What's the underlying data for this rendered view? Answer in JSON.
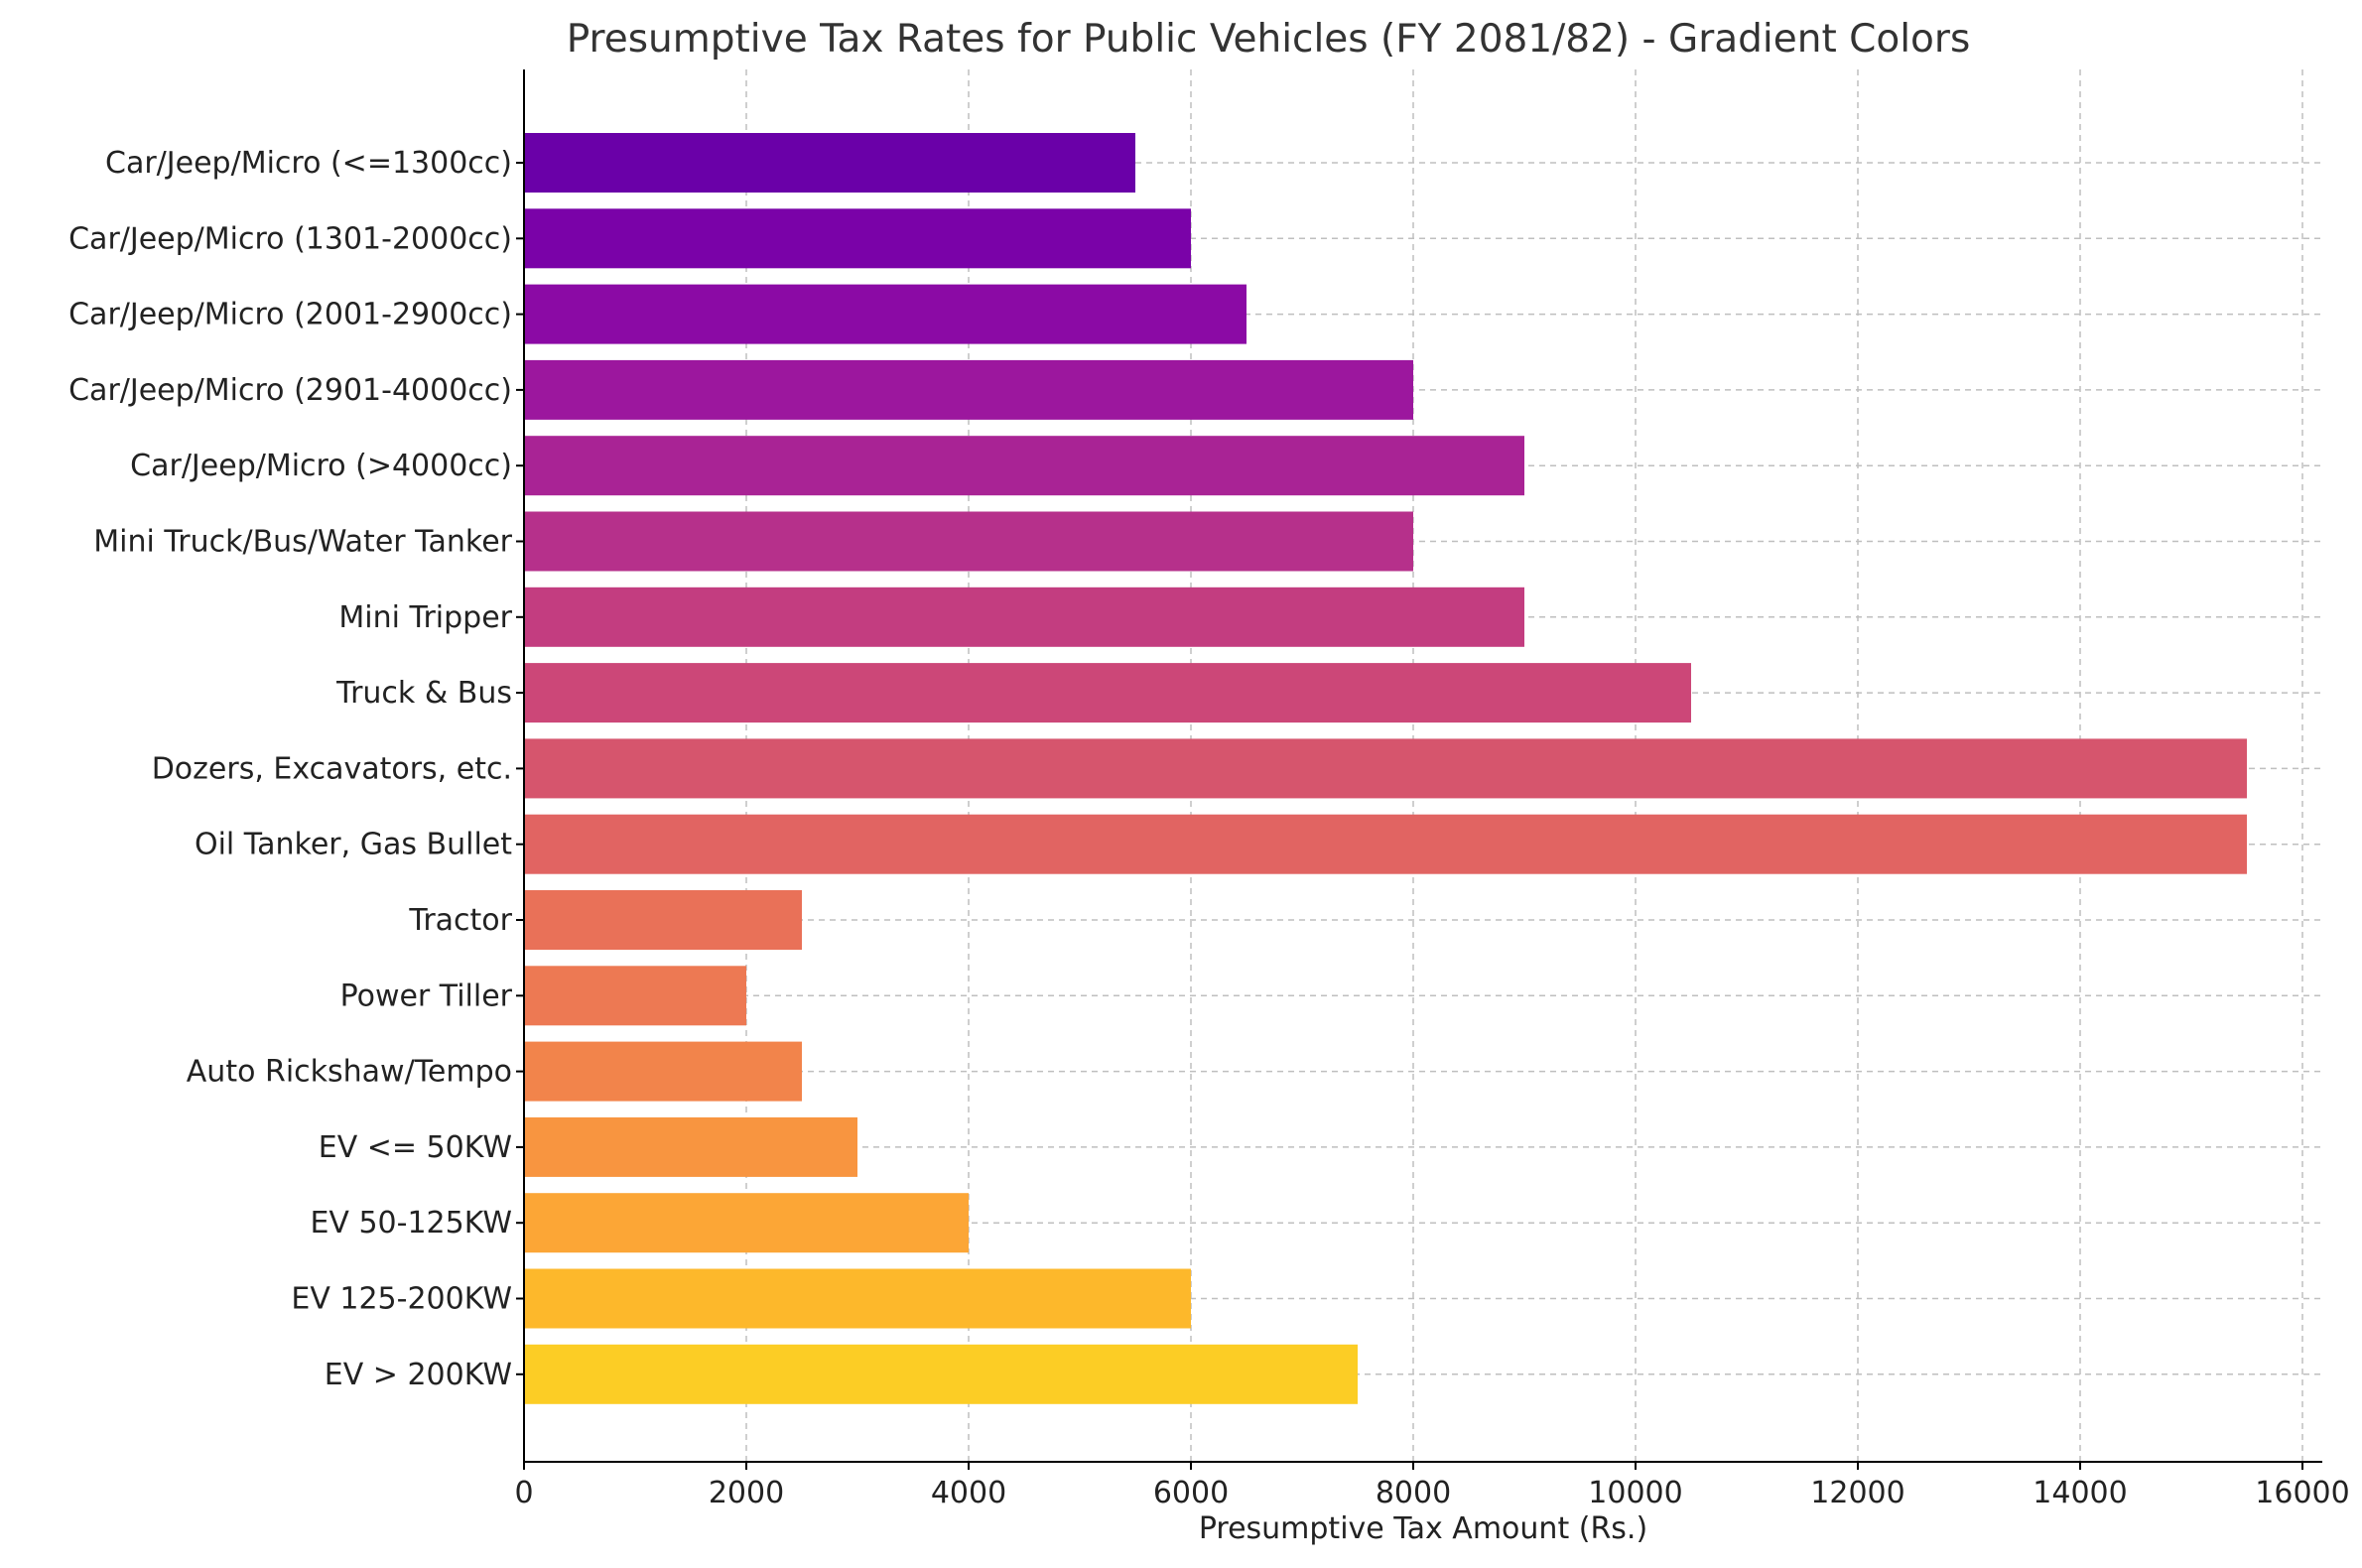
{
  "chart_data": {
    "type": "bar",
    "orientation": "horizontal",
    "title": "Presumptive Tax Rates for Public Vehicles (FY 2081/82) - Gradient Colors",
    "xlabel": "Presumptive Tax Amount (Rs.)",
    "ylabel": "",
    "xlim": [
      0,
      16300
    ],
    "xticks": [
      0,
      2000,
      4000,
      6000,
      8000,
      10000,
      12000,
      14000,
      16000
    ],
    "grid": true,
    "categories": [
      "Car/Jeep/Micro (<=1300cc)",
      "Car/Jeep/Micro (1301-2000cc)",
      "Car/Jeep/Micro (2001-2900cc)",
      "Car/Jeep/Micro (2901-4000cc)",
      "Car/Jeep/Micro (>4000cc)",
      "Mini Truck/Bus/Water Tanker",
      "Mini Tripper",
      "Truck & Bus",
      "Dozers, Excavators, etc.",
      "Oil Tanker, Gas Bullet",
      "Tractor",
      "Power Tiller",
      "Auto Rickshaw/Tempo",
      "EV <= 50KW",
      "EV 50-125KW",
      "EV 125-200KW",
      "EV > 200KW"
    ],
    "values": [
      5500,
      6000,
      6500,
      8000,
      9000,
      8000,
      9000,
      10500,
      15500,
      15500,
      2500,
      2000,
      2500,
      3000,
      4000,
      6000,
      7500
    ],
    "colors": [
      "#6a00a8",
      "#7a02a8",
      "#8b0aa5",
      "#9c179e",
      "#a92395",
      "#b6308b",
      "#c33d80",
      "#cc4778",
      "#d6556d",
      "#e16462",
      "#e97158",
      "#ed7953",
      "#f2844b",
      "#f89540",
      "#fca636",
      "#fdb82b",
      "#fccd25"
    ]
  }
}
